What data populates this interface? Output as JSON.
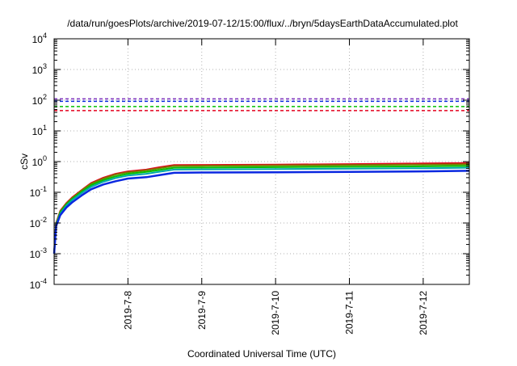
{
  "chart_data": {
    "type": "line",
    "title": "/data/run/goesPlots/archive/2019-07-12/15:00/flux/../bryn/5daysEarthDataAccumulated.plot",
    "xlabel": "Coordinated Universal Time (UTC)",
    "ylabel": "cSv",
    "yscale": "log",
    "ylim": [
      0.0001,
      10000
    ],
    "xlim": [
      "2019-07-07T00:00",
      "2019-07-12T15:00"
    ],
    "grid": true,
    "x_ticks": [
      "2019-7-8",
      "2019-7-9",
      "2019-7-10",
      "2019-7-11",
      "2019-7-12"
    ],
    "x_tick_dates": [
      "2019-07-08T00:00",
      "2019-07-09T00:00",
      "2019-07-10T00:00",
      "2019-07-11T00:00",
      "2019-07-12T00:00"
    ],
    "y_ticks": [
      {
        "base": "10",
        "exp": "-4"
      },
      {
        "base": "10",
        "exp": "-3"
      },
      {
        "base": "10",
        "exp": "-2"
      },
      {
        "base": "10",
        "exp": "-1"
      },
      {
        "base": "10",
        "exp": "0"
      },
      {
        "base": "10",
        "exp": "1"
      },
      {
        "base": "10",
        "exp": "2"
      },
      {
        "base": "10",
        "exp": "3"
      },
      {
        "base": "10",
        "exp": "4"
      }
    ],
    "series": [
      {
        "color": "#e4001c",
        "width": 2,
        "x": [
          "2019-07-07T00:00",
          "2019-07-07T00:40",
          "2019-07-07T02:00",
          "2019-07-07T04:00",
          "2019-07-07T06:00",
          "2019-07-07T09:00",
          "2019-07-07T12:00",
          "2019-07-07T16:00",
          "2019-07-07T20:00",
          "2019-07-08T00:00",
          "2019-07-08T06:00",
          "2019-07-08T10:00",
          "2019-07-08T15:00",
          "2019-07-09T00:00",
          "2019-07-10T00:00",
          "2019-07-11T00:00",
          "2019-07-12T00:00",
          "2019-07-12T15:00"
        ],
        "y": [
          0.001,
          0.01,
          0.025,
          0.045,
          0.07,
          0.12,
          0.2,
          0.3,
          0.4,
          0.48,
          0.55,
          0.65,
          0.77,
          0.78,
          0.8,
          0.83,
          0.87,
          0.9
        ]
      },
      {
        "color": "#7a7a00",
        "width": 2,
        "x": [
          "2019-07-07T00:00",
          "2019-07-07T00:40",
          "2019-07-07T02:00",
          "2019-07-07T04:00",
          "2019-07-07T06:00",
          "2019-07-07T09:00",
          "2019-07-07T12:00",
          "2019-07-07T16:00",
          "2019-07-07T20:00",
          "2019-07-08T00:00",
          "2019-07-08T06:00",
          "2019-07-08T10:00",
          "2019-07-08T15:00",
          "2019-07-09T00:00",
          "2019-07-10T00:00",
          "2019-07-11T00:00",
          "2019-07-12T00:00",
          "2019-07-12T15:00"
        ],
        "y": [
          0.001,
          0.0095,
          0.024,
          0.043,
          0.066,
          0.115,
          0.19,
          0.28,
          0.38,
          0.45,
          0.52,
          0.6,
          0.72,
          0.73,
          0.75,
          0.77,
          0.8,
          0.82
        ]
      },
      {
        "color": "#00c000",
        "width": 2,
        "x": [
          "2019-07-07T00:00",
          "2019-07-07T00:40",
          "2019-07-07T02:00",
          "2019-07-07T04:00",
          "2019-07-07T06:00",
          "2019-07-07T09:00",
          "2019-07-07T12:00",
          "2019-07-07T16:00",
          "2019-07-07T20:00",
          "2019-07-08T00:00",
          "2019-07-08T06:00",
          "2019-07-08T10:00",
          "2019-07-08T15:00",
          "2019-07-09T00:00",
          "2019-07-10T00:00",
          "2019-07-11T00:00",
          "2019-07-12T00:00",
          "2019-07-12T15:00"
        ],
        "y": [
          0.001,
          0.009,
          0.022,
          0.04,
          0.062,
          0.105,
          0.17,
          0.25,
          0.33,
          0.4,
          0.46,
          0.53,
          0.63,
          0.64,
          0.66,
          0.68,
          0.7,
          0.72
        ]
      },
      {
        "color": "#00a8a8",
        "width": 2,
        "x": [
          "2019-07-07T00:00",
          "2019-07-07T00:40",
          "2019-07-07T02:00",
          "2019-07-07T04:00",
          "2019-07-07T06:00",
          "2019-07-07T09:00",
          "2019-07-07T12:00",
          "2019-07-07T16:00",
          "2019-07-07T20:00",
          "2019-07-08T00:00",
          "2019-07-08T06:00",
          "2019-07-08T10:00",
          "2019-07-08T15:00",
          "2019-07-09T00:00",
          "2019-07-10T00:00",
          "2019-07-11T00:00",
          "2019-07-12T00:00",
          "2019-07-12T15:00"
        ],
        "y": [
          0.001,
          0.0085,
          0.02,
          0.037,
          0.057,
          0.095,
          0.15,
          0.22,
          0.29,
          0.35,
          0.4,
          0.46,
          0.55,
          0.56,
          0.57,
          0.59,
          0.61,
          0.63
        ]
      },
      {
        "color": "#0a28e0",
        "width": 2.5,
        "x": [
          "2019-07-07T00:00",
          "2019-07-07T00:40",
          "2019-07-07T02:00",
          "2019-07-07T04:00",
          "2019-07-07T06:00",
          "2019-07-07T09:00",
          "2019-07-07T12:00",
          "2019-07-07T16:00",
          "2019-07-07T20:00",
          "2019-07-08T00:00",
          "2019-07-08T06:00",
          "2019-07-08T10:00",
          "2019-07-08T15:00",
          "2019-07-09T00:00",
          "2019-07-10T00:00",
          "2019-07-11T00:00",
          "2019-07-12T00:00",
          "2019-07-12T15:00"
        ],
        "y": [
          0.001,
          0.008,
          0.018,
          0.032,
          0.048,
          0.08,
          0.125,
          0.18,
          0.23,
          0.28,
          0.31,
          0.36,
          0.43,
          0.44,
          0.45,
          0.46,
          0.48,
          0.5
        ]
      }
    ],
    "reference_lines": [
      {
        "y": 110,
        "color": "#7b2fbe"
      },
      {
        "y": 92,
        "color": "#0a28e0"
      },
      {
        "y": 62,
        "color": "#00c000"
      },
      {
        "y": 46,
        "color": "#e4001c"
      }
    ]
  }
}
